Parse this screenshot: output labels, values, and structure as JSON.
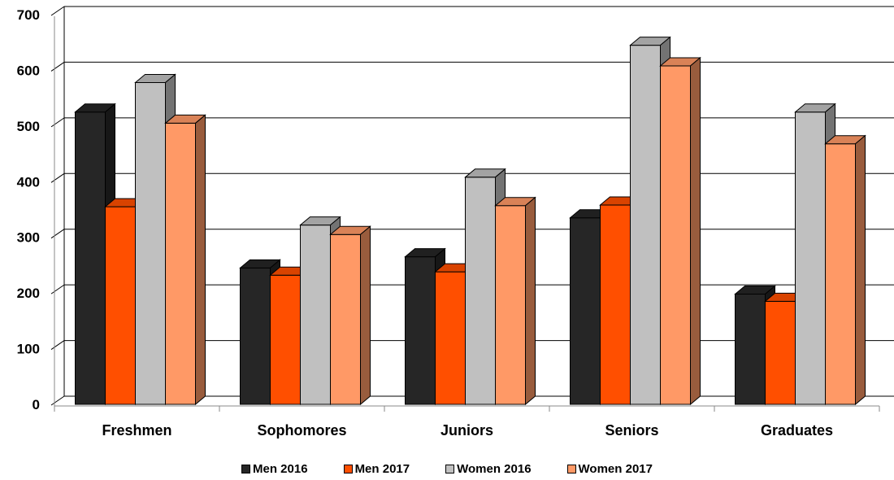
{
  "chart_data": {
    "type": "bar",
    "title": "",
    "xlabel": "",
    "ylabel": "",
    "ylim": [
      0,
      700
    ],
    "yticks": [
      "0",
      "100",
      "200",
      "300",
      "400",
      "500",
      "600",
      "700"
    ],
    "grid": true,
    "legend_position": "bottom",
    "categories": [
      "Freshmen",
      "Sophomores",
      "Juniors",
      "Seniors",
      "Graduates"
    ],
    "series": [
      {
        "name": "Men 2016",
        "color": "#262626",
        "values": [
          525,
          245,
          265,
          335,
          198
        ]
      },
      {
        "name": "Men 2017",
        "color": "#ff4f00",
        "values": [
          355,
          232,
          238,
          358,
          185
        ]
      },
      {
        "name": "Women 2016",
        "color": "#c0c0c0",
        "values": [
          578,
          322,
          408,
          645,
          525
        ]
      },
      {
        "name": "Women 2017",
        "color": "#ff9966",
        "values": [
          505,
          305,
          357,
          608,
          468
        ]
      }
    ]
  }
}
